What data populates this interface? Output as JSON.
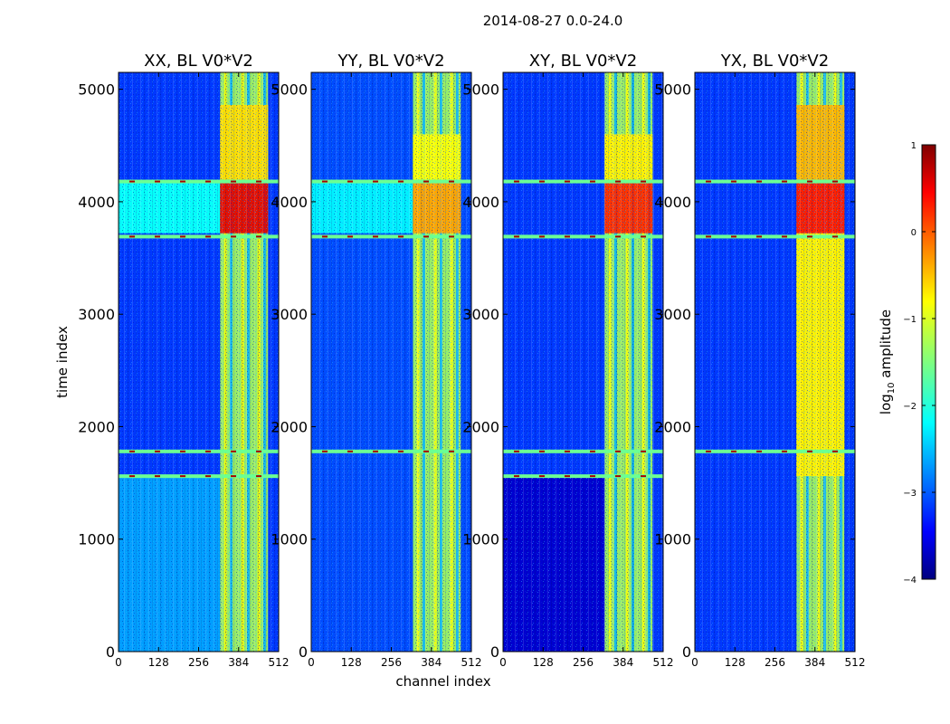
{
  "figure": {
    "title": "2014-08-27 0.0-24.0",
    "xlabel": "channel index",
    "ylabel": "time index"
  },
  "colorbar": {
    "label_prefix": "log",
    "label_sub": "10",
    "label_suffix": " amplitude",
    "range": [
      -4,
      1
    ],
    "ticks": [
      1,
      0,
      -1,
      -2,
      -3,
      -4
    ],
    "tick_labels": [
      "1",
      "0",
      "−1",
      "−2",
      "−3",
      "−4"
    ],
    "colormap": "jet",
    "colors": [
      "#00007f",
      "#0000ff",
      "#007fff",
      "#00ffff",
      "#7fff7f",
      "#ffff00",
      "#ff7f00",
      "#ff0000",
      "#7f0000"
    ]
  },
  "chart_data": [
    {
      "type": "heatmap",
      "title": "XX, BL V0*V2",
      "xlim": [
        0,
        512
      ],
      "ylim": [
        0,
        5150
      ],
      "xticks": [
        0,
        128,
        256,
        384,
        512
      ],
      "yticks": [
        0,
        1000,
        2000,
        3000,
        4000,
        5000
      ],
      "bands": [
        {
          "from": 325,
          "to": 478,
          "value": -1.3
        }
      ],
      "blocks": [
        {
          "y0": 3720,
          "y1": 4180,
          "x0": 0,
          "x1": 325,
          "value": -2.1
        },
        {
          "y0": 3720,
          "y1": 4180,
          "x0": 325,
          "x1": 478,
          "value": 0.5
        },
        {
          "y0": 4180,
          "y1": 4860,
          "x0": 325,
          "x1": 478,
          "value": -0.7
        },
        {
          "y0": 0,
          "y1": 1560,
          "x0": 0,
          "x1": 325,
          "value": -2.6
        }
      ],
      "hot_rows": [
        1560,
        1780,
        3690,
        4180
      ],
      "background": -3.1
    },
    {
      "type": "heatmap",
      "title": "YY, BL V0*V2",
      "xlim": [
        0,
        512
      ],
      "ylim": [
        0,
        5150
      ],
      "xticks": [
        0,
        128,
        256,
        384,
        512
      ],
      "yticks": [
        0,
        1000,
        2000,
        3000,
        4000,
        5000
      ],
      "bands": [
        {
          "from": 325,
          "to": 478,
          "value": -1.3
        }
      ],
      "blocks": [
        {
          "y0": 3720,
          "y1": 4180,
          "x0": 0,
          "x1": 325,
          "value": -2.2
        },
        {
          "y0": 3720,
          "y1": 4180,
          "x0": 325,
          "x1": 478,
          "value": -0.4
        },
        {
          "y0": 4180,
          "y1": 4600,
          "x0": 325,
          "x1": 478,
          "value": -0.9
        }
      ],
      "hot_rows": [
        1780,
        3690,
        4180
      ],
      "background": -3.0
    },
    {
      "type": "heatmap",
      "title": "XY, BL V0*V2",
      "xlim": [
        0,
        512
      ],
      "ylim": [
        0,
        5150
      ],
      "xticks": [
        0,
        128,
        256,
        384,
        512
      ],
      "yticks": [
        0,
        1000,
        2000,
        3000,
        4000,
        5000
      ],
      "bands": [
        {
          "from": 325,
          "to": 478,
          "value": -1.3
        }
      ],
      "blocks": [
        {
          "y0": 3720,
          "y1": 4180,
          "x0": 325,
          "x1": 478,
          "value": 0.2
        },
        {
          "y0": 4180,
          "y1": 4600,
          "x0": 325,
          "x1": 478,
          "value": -0.8
        },
        {
          "y0": 0,
          "y1": 1560,
          "x0": 0,
          "x1": 325,
          "value": -3.6
        }
      ],
      "hot_rows": [
        1560,
        1780,
        3690,
        4180
      ],
      "background": -3.1
    },
    {
      "type": "heatmap",
      "title": "YX, BL V0*V2",
      "xlim": [
        0,
        512
      ],
      "ylim": [
        0,
        5150
      ],
      "xticks": [
        0,
        128,
        256,
        384,
        512
      ],
      "yticks": [
        0,
        1000,
        2000,
        3000,
        4000,
        5000
      ],
      "bands": [
        {
          "from": 325,
          "to": 478,
          "value": -1.3
        }
      ],
      "blocks": [
        {
          "y0": 1560,
          "y1": 3720,
          "x0": 325,
          "x1": 478,
          "value": -0.8
        },
        {
          "y0": 3720,
          "y1": 4180,
          "x0": 325,
          "x1": 478,
          "value": 0.3
        },
        {
          "y0": 4180,
          "y1": 4860,
          "x0": 325,
          "x1": 478,
          "value": -0.5
        }
      ],
      "hot_rows": [
        1780,
        3690,
        4180
      ],
      "background": -3.1
    }
  ]
}
